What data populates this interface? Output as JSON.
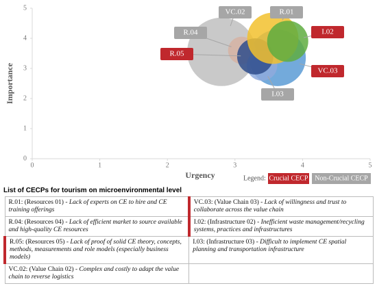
{
  "chart_data": {
    "type": "bubble",
    "x_label": "Urgency",
    "y_label": "Importance",
    "xlim": [
      0,
      5
    ],
    "ylim": [
      0,
      5
    ],
    "xticks": [
      0,
      1,
      2,
      3,
      4,
      5
    ],
    "yticks": [
      0,
      1,
      2,
      3,
      4,
      5
    ],
    "grid": false,
    "legend": {
      "title": "Legend:",
      "items": [
        {
          "label": "Crucial CECP",
          "color": "#c0282d"
        },
        {
          "label": "Non-Crucial CECP",
          "color": "#a6a6a6"
        }
      ],
      "position": "bottom-right"
    },
    "series": [
      {
        "name": "VC.02",
        "color": "#bfbfbf",
        "crucial": false,
        "x": [
          2.8
        ],
        "values": [
          3.55
        ],
        "sizes": [
          25
        ]
      },
      {
        "name": "VC.03",
        "color": "#5b9bd5",
        "crucial": true,
        "x": [
          3.63
        ],
        "values": [
          3.35
        ],
        "sizes": [
          17
        ]
      },
      {
        "name": "R.04",
        "color": "#d6b3a3",
        "crucial": false,
        "x": [
          3.1
        ],
        "values": [
          3.6
        ],
        "sizes": [
          4
        ]
      },
      {
        "name": "I.03",
        "color": "#8faadc",
        "crucial": false,
        "x": [
          3.4
        ],
        "values": [
          3.1
        ],
        "sizes": [
          5
        ]
      },
      {
        "name": "R.05",
        "color": "#2f4e8c",
        "crucial": true,
        "x": [
          3.3
        ],
        "values": [
          3.4
        ],
        "sizes": [
          7
        ]
      },
      {
        "name": "R.01",
        "color": "#f2c12e",
        "crucial": false,
        "x": [
          3.56
        ],
        "values": [
          4.0
        ],
        "sizes": [
          14
        ]
      },
      {
        "name": "I.02",
        "color": "#5fad41",
        "crucial": true,
        "x": [
          3.78
        ],
        "values": [
          3.9
        ],
        "sizes": [
          9
        ]
      }
    ]
  },
  "table": {
    "title": "List of CECPs for tourism on microenvironmental level",
    "rows": [
      [
        {
          "head": "R.01: (Resources 01) -",
          "text": "Lack of experts on CE to hire and CE training offerings",
          "crucial": false
        },
        {
          "head": "VC.03: (Value Chain 03) -",
          "text": "Lack of willingness and trust to collaborate across the value chain",
          "crucial": true
        }
      ],
      [
        {
          "head": "R.04: (Resources 04) -",
          "text": "Lack of efficient market to source available and high-quality CE resources",
          "crucial": false
        },
        {
          "head": "I.02: (Infrastructure 02) -",
          "text": "Inefficient waste management/recycling systems, practices and infrastructures",
          "crucial": true
        }
      ],
      [
        {
          "head": "R.05: (Resources 05) -",
          "text": "Lack of proof of solid CE theory, concepts, methods, measurements and role models (especially business models)",
          "crucial": true
        },
        {
          "head": "I.03: (Infrastructure 03) -",
          "text": "Difficult to implement CE spatial planning and transportation infrastructure",
          "crucial": false
        }
      ],
      [
        {
          "head": "VC.02: (Value Chain 02) -",
          "text": "Complex and costly to adapt the value chain to reverse logistics",
          "crucial": false
        },
        null
      ]
    ]
  }
}
